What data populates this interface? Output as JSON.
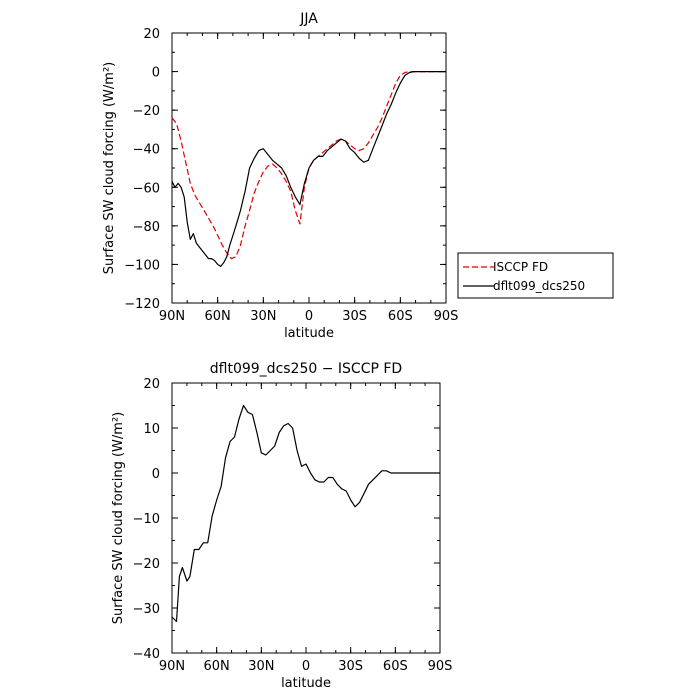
{
  "colors": {
    "isccp": "#e00000",
    "model": "#000000",
    "axis": "#000000"
  },
  "chart_data": [
    {
      "type": "line",
      "title": "JJA",
      "xlabel": "latitude",
      "ylabel": "Surface SW cloud forcing (W/m²)",
      "xlim": [
        90,
        -90
      ],
      "ylim": [
        -120,
        20
      ],
      "xticks": [
        90,
        60,
        30,
        0,
        -30,
        -60,
        -90
      ],
      "xtick_labels": [
        "90N",
        "60N",
        "30N",
        "0",
        "30S",
        "60S",
        "90S"
      ],
      "yticks": [
        20,
        0,
        -20,
        -40,
        -60,
        -80,
        -100,
        -120
      ],
      "ytick_labels": [
        "20",
        "0",
        "−20",
        "−40",
        "−60",
        "−80",
        "−100",
        "−120"
      ],
      "legend": {
        "placement": "right-outside",
        "entries": [
          "ISCCP FD",
          "dflt099_dcs250"
        ]
      },
      "series": [
        {
          "name": "ISCCP FD",
          "style": "dashed",
          "color": "#e00000",
          "x": [
            90,
            87,
            84,
            81,
            78,
            75,
            72,
            69,
            66,
            63,
            60,
            57,
            54,
            51,
            48,
            45,
            42,
            39,
            36,
            33,
            30,
            27,
            24,
            21,
            18,
            15,
            12,
            9,
            6,
            3,
            0,
            -3,
            -6,
            -9,
            -12,
            -15,
            -18,
            -21,
            -24,
            -27,
            -30,
            -33,
            -36,
            -39,
            -42,
            -45,
            -48,
            -51,
            -54,
            -57,
            -60,
            -63,
            -66,
            -69,
            -72,
            -75,
            -78,
            -81,
            -84,
            -87,
            -90
          ],
          "y": [
            -24,
            -27,
            -36,
            -47,
            -58,
            -64,
            -68,
            -72,
            -76,
            -80,
            -85,
            -90,
            -94,
            -97,
            -96,
            -90,
            -80,
            -72,
            -63,
            -57,
            -52,
            -49,
            -48,
            -50,
            -53,
            -57,
            -62,
            -72,
            -79,
            -60,
            -50,
            -46,
            -44,
            -42,
            -40,
            -38,
            -36,
            -35,
            -36,
            -38,
            -40,
            -41,
            -40,
            -37,
            -33,
            -29,
            -24,
            -18,
            -12,
            -6,
            -2,
            -0.5,
            0,
            0,
            0,
            0,
            0,
            0,
            0,
            0,
            0
          ]
        },
        {
          "name": "dflt099_dcs250",
          "style": "solid",
          "color": "#000000",
          "x": [
            90,
            88,
            86,
            84,
            82,
            80,
            78,
            76,
            74,
            72,
            70,
            68,
            66,
            64,
            62,
            60,
            58,
            56,
            54,
            52,
            50,
            48,
            45,
            42,
            39,
            36,
            33,
            30,
            27,
            24,
            21,
            18,
            15,
            12,
            9,
            6,
            3,
            0,
            -3,
            -6,
            -9,
            -12,
            -15,
            -18,
            -21,
            -24,
            -27,
            -30,
            -33,
            -36,
            -39,
            -42,
            -45,
            -48,
            -51,
            -54,
            -57,
            -60,
            -63,
            -66,
            -69,
            -72,
            -75,
            -78,
            -81,
            -84,
            -87,
            -90
          ],
          "y": [
            -57,
            -60,
            -58,
            -60,
            -65,
            -78,
            -87,
            -84,
            -89,
            -91,
            -93,
            -95,
            -97,
            -97,
            -98,
            -100,
            -101,
            -99,
            -96,
            -90,
            -85,
            -80,
            -72,
            -62,
            -50,
            -45,
            -41,
            -40,
            -43,
            -46,
            -48,
            -50,
            -54,
            -60,
            -65,
            -69,
            -58,
            -50,
            -46,
            -44,
            -44,
            -41,
            -39,
            -37,
            -35,
            -36,
            -40,
            -42,
            -45,
            -47,
            -46,
            -40,
            -34,
            -28,
            -22,
            -17,
            -11,
            -6,
            -2,
            -0.5,
            0,
            0,
            0,
            0,
            0,
            0,
            0,
            0
          ]
        }
      ]
    },
    {
      "type": "line",
      "title": "dflt099_dcs250 − ISCCP FD",
      "xlabel": "latitude",
      "ylabel": "Surface SW cloud forcing (W/m²)",
      "xlim": [
        90,
        -90
      ],
      "ylim": [
        -40,
        20
      ],
      "xticks": [
        90,
        60,
        30,
        0,
        -30,
        -60,
        -90
      ],
      "xtick_labels": [
        "90N",
        "60N",
        "30N",
        "0",
        "30S",
        "60S",
        "90S"
      ],
      "yticks": [
        20,
        10,
        0,
        -10,
        -20,
        -30,
        -40
      ],
      "ytick_labels": [
        "20",
        "10",
        "0",
        "−10",
        "−20",
        "−30",
        "−40"
      ],
      "series": [
        {
          "name": "dflt099_dcs250 − ISCCP FD",
          "style": "solid",
          "color": "#000000",
          "x": [
            90,
            87,
            85,
            83,
            80,
            78,
            75,
            72,
            69,
            66,
            63,
            60,
            57,
            54,
            51,
            48,
            45,
            42,
            39,
            36,
            33,
            30,
            27,
            24,
            21,
            18,
            15,
            12,
            9,
            6,
            3,
            0,
            -3,
            -6,
            -9,
            -12,
            -15,
            -18,
            -21,
            -24,
            -27,
            -30,
            -33,
            -36,
            -39,
            -42,
            -45,
            -48,
            -51,
            -54,
            -57,
            -60,
            -63,
            -66,
            -69,
            -72,
            -75,
            -78,
            -81,
            -84,
            -87,
            -90
          ],
          "y": [
            -32,
            -33,
            -23,
            -21,
            -24,
            -23,
            -17,
            -17,
            -15.5,
            -15.5,
            -9.5,
            -6,
            -3,
            3.5,
            7,
            8,
            12,
            15,
            13.5,
            13,
            9,
            4.5,
            4,
            5,
            6,
            9,
            10.5,
            11,
            10,
            5,
            1.5,
            2,
            0,
            -1.5,
            -2,
            -2,
            -1,
            -1,
            -2.5,
            -3.5,
            -4,
            -6,
            -7.5,
            -6.5,
            -4.5,
            -2.5,
            -1.5,
            -0.5,
            0.5,
            0.5,
            0,
            0,
            0,
            0,
            0,
            0,
            0,
            0,
            0,
            0,
            0,
            0
          ]
        }
      ]
    }
  ]
}
